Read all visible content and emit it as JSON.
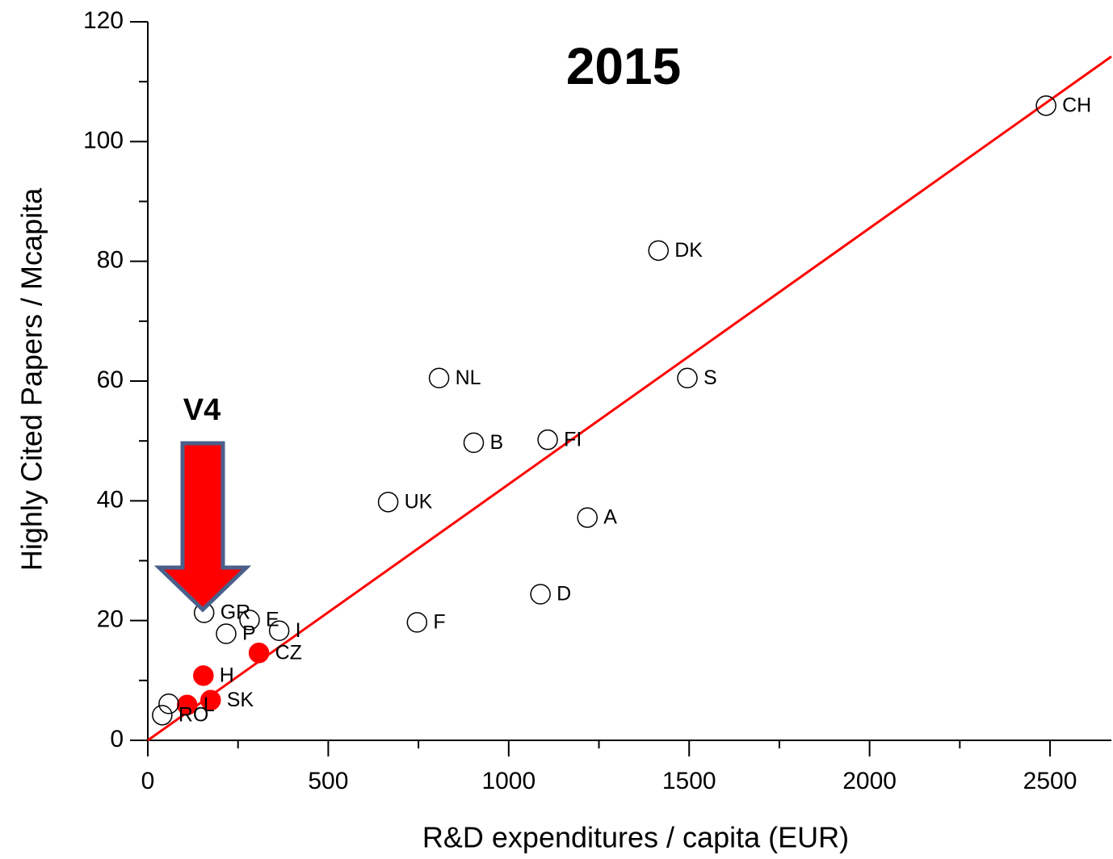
{
  "chart_data": {
    "type": "scatter",
    "title": "2015",
    "xlabel": "R&D expenditures / capita (EUR)",
    "ylabel": "Highly Cited Papers / Mcapita",
    "annotation": "V4",
    "x": [
      2489,
      1415,
      1495,
      807,
      903,
      1108,
      666,
      1218,
      1088,
      746,
      156,
      282,
      217,
      364,
      308,
      154,
      174,
      109,
      40,
      58
    ],
    "values": [
      106,
      81.8,
      60.5,
      60.5,
      49.7,
      50.2,
      39.8,
      37.2,
      24.4,
      19.7,
      21.3,
      20.1,
      17.8,
      18.3,
      14.6,
      10.8,
      6.7,
      5.9,
      4.2,
      6.1
    ],
    "labels": [
      "CH",
      "DK",
      "S",
      "NL",
      "B",
      "FI",
      "UK",
      "A",
      "D",
      "F",
      "GR",
      "E",
      "P",
      "I",
      "CZ",
      "H",
      "SK",
      "L",
      "RO",
      null
    ],
    "fills": [
      "none",
      "none",
      "none",
      "none",
      "none",
      "none",
      "none",
      "none",
      "none",
      "none",
      "none",
      "none",
      "none",
      "none",
      "#ff0000",
      "#ff0000",
      "#ff0000",
      "#ff0000",
      "none",
      "none"
    ],
    "fit_line": {
      "x": [
        0,
        2670
      ],
      "y": [
        0,
        114.2
      ],
      "color": "#ff0000"
    },
    "xlim": [
      0,
      2670
    ],
    "ylim": [
      0,
      120
    ],
    "xticks": [
      0,
      500,
      1000,
      1500,
      2000,
      2500
    ],
    "yticks": [
      0,
      20,
      40,
      60,
      80,
      100,
      120
    ],
    "xminor_ticks": [
      250,
      750,
      1250,
      1750,
      2250
    ],
    "yminor_ticks": [
      10,
      30,
      50,
      70,
      90,
      110
    ],
    "grid": false
  }
}
